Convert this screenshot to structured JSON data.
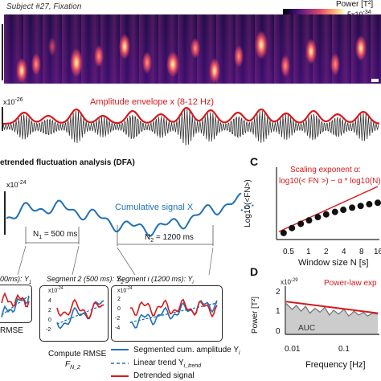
{
  "spectrogram": {
    "subject_label": "Subject #27, Fixation",
    "colorbar_label": "Power [T²]",
    "colorbar_max": "5x10",
    "colorbar_exp": "-34"
  },
  "envelope": {
    "scale_label": "x10",
    "scale_exp": "-26",
    "label": "Amplitude envelope x (8-12 Hz)",
    "colors": {
      "signal": "#333333",
      "envelope": "#d7191c"
    }
  },
  "dfa": {
    "section_title": "etrended fluctuation analysis (DFA)",
    "scale_label": "x10",
    "scale_exp": "-24",
    "cumulative_label": "Cumulative signal X",
    "n1_label": "N",
    "n1_sub": "1",
    "n1_value": "= 500 ms",
    "n2_label": "N",
    "n2_sub": "2",
    "n2_value": "= 1200 ms",
    "cumulative_color": "#2171b5"
  },
  "segments": {
    "seg1_title": "00ms): Y",
    "seg1_sub": "1",
    "seg2_title": "Segment 2 (500 ms): Y",
    "seg2_sub": "2",
    "segi_title": "Segment i (1200 ms): Y",
    "segi_sub": "i",
    "seg2_scale": "x10",
    "seg2_scale_exp": "-24",
    "segi_scale": "x10",
    "segi_scale_exp": "-24",
    "seg2_ticks": [
      "4",
      "2",
      "0",
      "-2"
    ],
    "segi_ticks": [
      "2",
      "0",
      "-2",
      "-4"
    ],
    "rmse_label": "RMSE",
    "compute_rmse_label": "Compute RMSE",
    "f_label": "F",
    "f_sub": "N_2",
    "legend": {
      "item1_text": "Segmented cum. amplitude Y",
      "item1_sub": "i",
      "item2_text": "Linear trend Y",
      "item2_sub": "i_trend",
      "item3_text": "Detrended signal"
    }
  },
  "panel_c": {
    "letter": "C",
    "annotation_line1": "Scaling exponent α:",
    "annotation_line2": "log10(< FN >) ~ α * log10(N)",
    "xlabel": "Window size N [s]",
    "ylabel": "Log10(<FN>)",
    "xticks": [
      "0.5",
      "1",
      "2",
      "4",
      "8",
      "16"
    ],
    "chart_data": {
      "type": "scatter",
      "x": [
        0.5,
        0.7,
        1.0,
        1.4,
        2.0,
        2.8,
        4.0,
        5.6,
        8.0,
        11.3,
        16.0,
        22.6
      ],
      "y": [
        0.0,
        0.14,
        0.26,
        0.36,
        0.45,
        0.53,
        0.6,
        0.66,
        0.72,
        0.77,
        0.82,
        0.86
      ],
      "xscale": "log",
      "colors": {
        "points": "#111111",
        "fit": "#d7191c"
      }
    }
  },
  "panel_d": {
    "letter": "D",
    "annotation": "Power-law exp",
    "xlabel": "Frequency [Hz]",
    "ylabel": "Power [T²]",
    "scale_label": "x10",
    "scale_exp": "-29",
    "yticks": [
      "2",
      "1",
      "0"
    ],
    "xticks": [
      "0.01",
      "0.1"
    ],
    "auc_label": "AUC",
    "chart_data": {
      "type": "line",
      "xscale": "log",
      "x": [
        0.004,
        0.006,
        0.008,
        0.011,
        0.015,
        0.02,
        0.028,
        0.04,
        0.055,
        0.075,
        0.1,
        0.14,
        0.2,
        0.28,
        0.4,
        0.55,
        0.75,
        1.0,
        1.4,
        2.0
      ],
      "y": [
        1.6,
        1.3,
        1.5,
        1.2,
        1.45,
        1.1,
        1.35,
        1.15,
        1.4,
        1.0,
        1.25,
        1.05,
        1.3,
        0.95,
        1.2,
        1.0,
        1.15,
        0.95,
        1.1,
        1.05
      ],
      "fit_y": [
        1.7,
        1.1
      ],
      "ylim": [
        0,
        2.5
      ],
      "colors": {
        "spectrum": "#777777",
        "fit": "#d7191c",
        "auc": "#cccccc"
      }
    }
  }
}
